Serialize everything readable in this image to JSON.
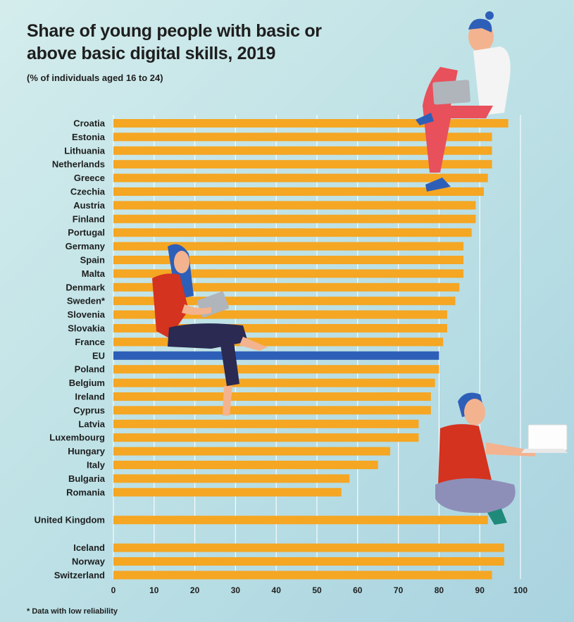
{
  "title": "Share of young people with basic or above basic digital skills, 2019",
  "subtitle": "(% of individuals aged 16 to 24)",
  "footnote": "* Data with low reliability",
  "colors": {
    "bar": "#f5a623",
    "highlight": "#2e5fb8",
    "grid": "#ffffff"
  },
  "chart_data": {
    "type": "bar",
    "orientation": "horizontal",
    "categories": [
      "Croatia",
      "Estonia",
      "Lithuania",
      "Netherlands",
      "Greece",
      "Czechia",
      "Austria",
      "Finland",
      "Portugal",
      "Germany",
      "Spain",
      "Malta",
      "Denmark",
      "Sweden*",
      "Slovenia",
      "Slovakia",
      "France",
      "EU",
      "Poland",
      "Belgium",
      "Ireland",
      "Cyprus",
      "Latvia",
      "Luxembourg",
      "Hungary",
      "Italy",
      "Bulgaria",
      "Romania",
      "United Kingdom",
      "Iceland",
      "Norway",
      "Switzerland"
    ],
    "values": [
      97,
      93,
      93,
      93,
      92,
      91,
      89,
      89,
      88,
      86,
      86,
      86,
      85,
      84,
      82,
      82,
      81,
      80,
      80,
      79,
      78,
      78,
      75,
      75,
      68,
      65,
      58,
      56,
      92,
      96,
      96,
      93
    ],
    "highlight": [
      "EU"
    ],
    "groups": [
      [
        "Croatia",
        "Estonia",
        "Lithuania",
        "Netherlands",
        "Greece",
        "Czechia",
        "Austria",
        "Finland",
        "Portugal",
        "Germany",
        "Spain",
        "Malta",
        "Denmark",
        "Sweden*",
        "Slovenia",
        "Slovakia",
        "France",
        "EU",
        "Poland",
        "Belgium",
        "Ireland",
        "Cyprus",
        "Latvia",
        "Luxembourg",
        "Hungary",
        "Italy",
        "Bulgaria",
        "Romania"
      ],
      [
        "United Kingdom"
      ],
      [
        "Iceland",
        "Norway",
        "Switzerland"
      ]
    ],
    "xlim": [
      0,
      100
    ],
    "xticks": [
      0,
      10,
      20,
      30,
      40,
      50,
      60,
      70,
      80,
      90,
      100
    ],
    "grid": true,
    "legend": "none"
  }
}
